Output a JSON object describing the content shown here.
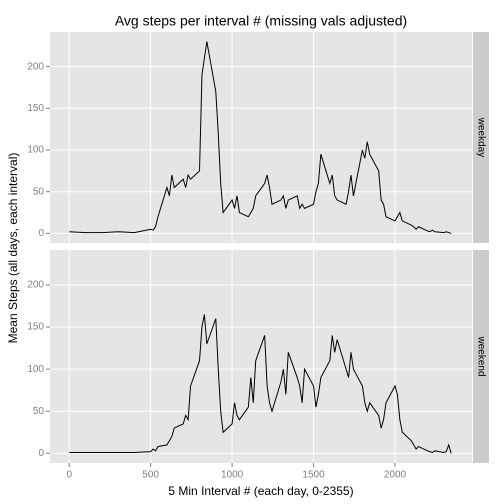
{
  "chart_data": {
    "type": "line",
    "title": "Avg steps per interval # (missing vals adjusted)",
    "x_label": "5 Min Interval # (each day, 0-2355)",
    "y_label": "Mean Steps (all days, each interval)",
    "facet": true,
    "grid": true,
    "xlim": [
      -118,
      2473
    ],
    "xticks": [
      0,
      500,
      1000,
      1500,
      2000
    ],
    "ylim": [
      -11.5,
      241.5
    ],
    "yticks": [
      0,
      50,
      100,
      150,
      200
    ],
    "x": [
      0,
      100,
      200,
      300,
      400,
      500,
      515,
      530,
      545,
      600,
      615,
      630,
      645,
      700,
      715,
      730,
      745,
      800,
      815,
      830,
      845,
      900,
      915,
      930,
      945,
      1000,
      1015,
      1030,
      1045,
      1100,
      1115,
      1130,
      1145,
      1200,
      1215,
      1230,
      1245,
      1300,
      1315,
      1330,
      1345,
      1400,
      1415,
      1430,
      1445,
      1500,
      1515,
      1530,
      1545,
      1600,
      1615,
      1630,
      1645,
      1700,
      1715,
      1730,
      1745,
      1800,
      1815,
      1830,
      1845,
      1900,
      1915,
      1930,
      1945,
      2000,
      2015,
      2030,
      2045,
      2100,
      2115,
      2130,
      2145,
      2200,
      2215,
      2230,
      2245,
      2300,
      2315,
      2330,
      2345
    ],
    "series": [
      {
        "name": "weekday",
        "color": "#000000",
        "values": [
          2,
          1,
          1,
          2,
          1,
          5,
          4,
          8,
          20,
          55,
          45,
          70,
          55,
          65,
          55,
          70,
          65,
          75,
          190,
          210,
          230,
          170,
          120,
          60,
          25,
          40,
          30,
          45,
          25,
          20,
          25,
          30,
          45,
          60,
          70,
          55,
          35,
          40,
          45,
          30,
          40,
          45,
          30,
          35,
          30,
          35,
          50,
          60,
          95,
          60,
          70,
          45,
          40,
          35,
          50,
          70,
          45,
          100,
          90,
          110,
          95,
          75,
          40,
          35,
          20,
          15,
          20,
          25,
          15,
          10,
          8,
          5,
          8,
          3,
          2,
          4,
          2,
          1,
          2,
          1,
          0
        ]
      },
      {
        "name": "weekend",
        "color": "#000000",
        "values": [
          1,
          1,
          1,
          1,
          1,
          2,
          5,
          3,
          8,
          10,
          15,
          20,
          30,
          35,
          45,
          40,
          80,
          110,
          150,
          165,
          130,
          160,
          100,
          50,
          25,
          35,
          60,
          45,
          40,
          55,
          90,
          60,
          110,
          140,
          80,
          60,
          50,
          85,
          100,
          70,
          120,
          90,
          80,
          60,
          100,
          80,
          55,
          70,
          90,
          110,
          140,
          120,
          135,
          100,
          90,
          120,
          100,
          80,
          60,
          50,
          60,
          45,
          30,
          40,
          60,
          80,
          70,
          40,
          25,
          15,
          10,
          5,
          8,
          3,
          2,
          1,
          3,
          1,
          2,
          10,
          0
        ]
      }
    ]
  }
}
